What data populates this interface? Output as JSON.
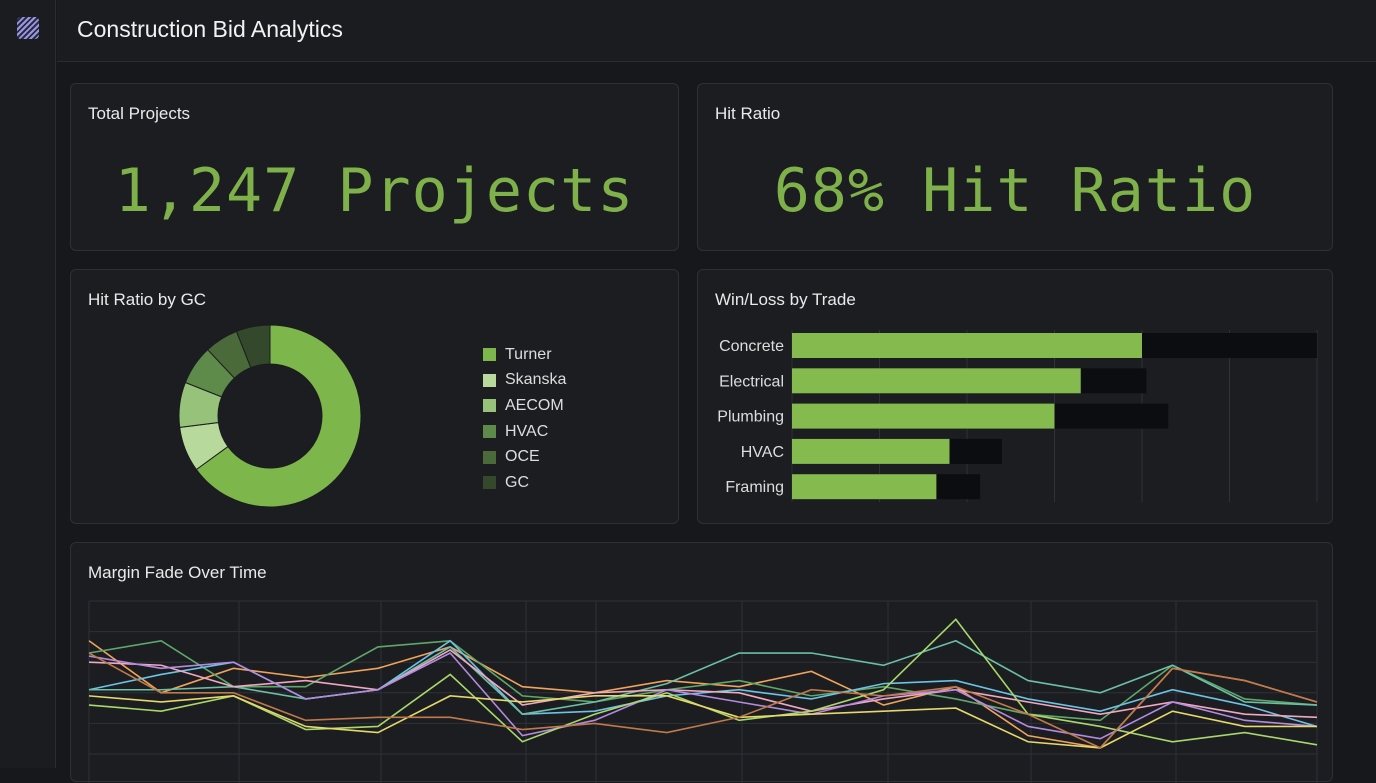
{
  "header": {
    "title": "Construction Bid Analytics",
    "logo_icon": "striped-square-logo"
  },
  "kpis": [
    {
      "title": "Total Projects",
      "value": "1,247 Projects"
    },
    {
      "title": "Hit Ratio",
      "value": "68% Hit Ratio"
    }
  ],
  "colors": {
    "accent": "#7fb14a",
    "background": "#16181c",
    "card": "#1b1d21"
  },
  "chart_data": [
    {
      "type": "pie",
      "title": "Hit Ratio by GC",
      "donut": true,
      "categories": [
        "Turner",
        "Skanska",
        "AECOM",
        "HVAC",
        "OCE",
        "GC"
      ],
      "values": [
        65,
        8,
        8,
        7,
        6,
        6
      ],
      "colors": [
        "#7db64a",
        "#b7d99b",
        "#97c27a",
        "#5e8a4a",
        "#4a6a3a",
        "#34482c"
      ],
      "legend": "right"
    },
    {
      "type": "bar",
      "orientation": "horizontal",
      "title": "Win/Loss by Trade",
      "categories": [
        "Concrete",
        "Electrical",
        "Plumbing",
        "HVAC",
        "Framing"
      ],
      "series": [
        {
          "values": [
            40,
            33,
            30,
            18,
            16.5
          ],
          "color": "#84ba4e"
        },
        {
          "values": [
            60,
            40.5,
            43,
            24,
            21.5
          ],
          "color": "#0c0d10"
        }
      ],
      "xlim": [
        0,
        60
      ],
      "grid": true
    },
    {
      "type": "line",
      "title": "Margin Fade Over Time",
      "ylim": [
        0,
        5
      ],
      "grid": true,
      "x": [
        1,
        2,
        3,
        4,
        5,
        6,
        7,
        8,
        9,
        10,
        11,
        12,
        13,
        14,
        15,
        16,
        17,
        18
      ],
      "series": [
        {
          "color": "#f0a35a",
          "values": [
            3.7,
            2.0,
            2.8,
            2.5,
            2.8,
            3.5,
            2.2,
            2.0,
            2.4,
            2.2,
            2.7,
            1.6,
            2.2,
            0.6,
            0.2,
            2.8,
            2.4,
            1.7
          ]
        },
        {
          "color": "#5fa86a",
          "values": [
            3.3,
            3.7,
            2.2,
            2.2,
            3.5,
            3.7,
            1.9,
            1.7,
            2.1,
            2.4,
            1.9,
            2.2,
            1.8,
            1.3,
            1.1,
            2.9,
            1.8,
            1.6
          ]
        },
        {
          "color": "#6cc3e6",
          "values": [
            2.1,
            2.6,
            3.0,
            1.8,
            2.1,
            3.7,
            1.3,
            1.4,
            1.9,
            2.1,
            1.8,
            2.3,
            2.4,
            1.8,
            1.4,
            2.1,
            1.6,
            0.9
          ]
        },
        {
          "color": "#6bbfa5",
          "values": [
            2.1,
            2.1,
            2.2,
            1.8,
            2.1,
            3.5,
            1.3,
            1.7,
            2.3,
            3.3,
            3.3,
            2.9,
            3.7,
            2.4,
            2.0,
            2.9,
            1.7,
            1.6
          ]
        },
        {
          "color": "#f0a8c0",
          "values": [
            3.0,
            2.9,
            2.2,
            2.4,
            2.1,
            3.4,
            1.6,
            2.0,
            2.1,
            2.0,
            1.4,
            1.8,
            2.1,
            1.7,
            1.3,
            1.7,
            1.3,
            1.2
          ]
        },
        {
          "color": "#b48be0",
          "values": [
            3.2,
            2.8,
            3.0,
            1.8,
            2.1,
            3.3,
            0.6,
            1.1,
            2.1,
            1.7,
            1.3,
            1.9,
            2.1,
            0.9,
            0.5,
            1.7,
            1.1,
            0.9
          ]
        },
        {
          "color": "#a8d86a",
          "values": [
            1.6,
            1.4,
            1.9,
            0.8,
            0.9,
            2.6,
            0.4,
            1.3,
            2.0,
            1.1,
            1.4,
            2.1,
            4.4,
            1.3,
            0.9,
            0.4,
            0.7,
            0.3
          ]
        },
        {
          "color": "#e6d86a",
          "values": [
            1.9,
            1.7,
            1.9,
            0.9,
            0.7,
            1.9,
            1.7,
            1.9,
            1.9,
            1.2,
            1.3,
            1.4,
            1.5,
            0.4,
            0.2,
            1.4,
            0.9,
            0.9
          ]
        },
        {
          "color": "#c07a4a",
          "values": [
            3.3,
            2.0,
            2.0,
            1.1,
            1.2,
            1.2,
            0.8,
            1.0,
            0.7,
            1.2,
            2.1,
            1.9,
            2.2,
            1.3,
            0.2,
            2.8,
            2.4,
            1.7
          ]
        }
      ]
    }
  ]
}
